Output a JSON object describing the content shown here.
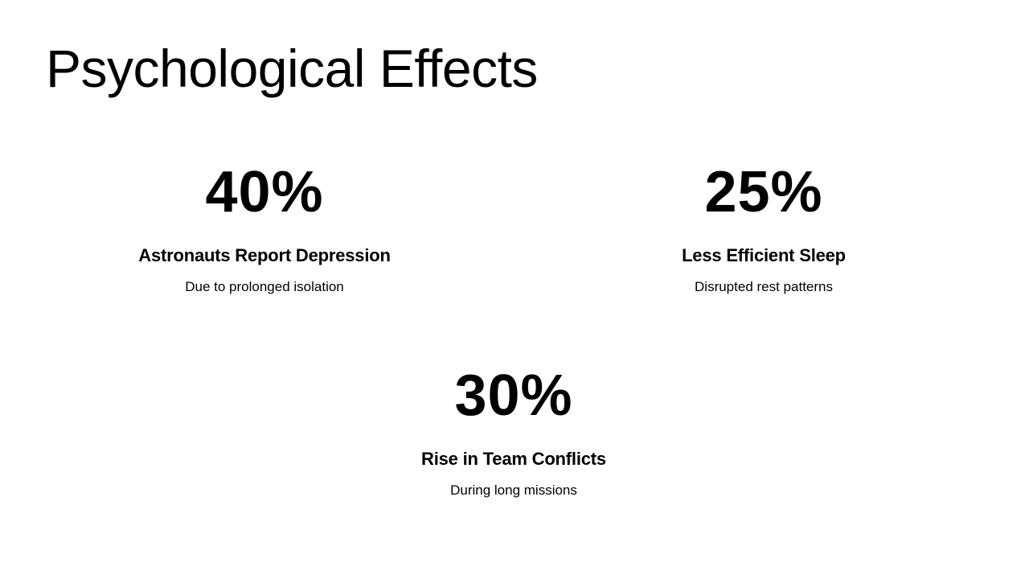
{
  "slide": {
    "title": "Psychological Effects"
  },
  "stats": [
    {
      "value": "40%",
      "label": "Astronauts Report Depression",
      "description": "Due to prolonged isolation"
    },
    {
      "value": "25%",
      "label": "Less Efficient Sleep",
      "description": "Disrupted rest patterns"
    },
    {
      "value": "30%",
      "label": "Rise in Team Conflicts",
      "description": "During long missions"
    }
  ],
  "colors": {
    "background": "#ffffff",
    "text": "#000000"
  }
}
